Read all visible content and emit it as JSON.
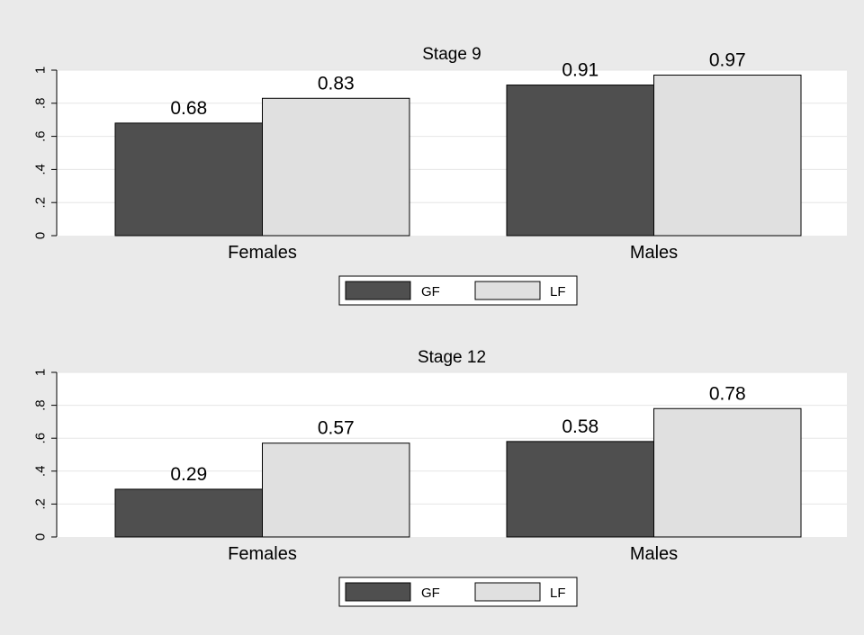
{
  "colors": {
    "outer_bg": "#eaeaea",
    "plot_bg": "#ffffff",
    "grid": "#e6e6e6",
    "gf": "#4f4f4f",
    "lf": "#e0e0e0",
    "bar_stroke": "#000000"
  },
  "chart_data": [
    {
      "type": "bar",
      "title": "Stage 9",
      "categories": [
        "Females",
        "Males"
      ],
      "series": [
        {
          "name": "GF",
          "values": [
            0.68,
            0.91
          ],
          "labels": [
            "0.68",
            "0.91"
          ]
        },
        {
          "name": "LF",
          "values": [
            0.83,
            0.97
          ],
          "labels": [
            "0.83",
            "0.97"
          ]
        }
      ],
      "ylim": [
        0,
        1
      ],
      "yticks": [
        0,
        0.2,
        0.4,
        0.6,
        0.8,
        1
      ],
      "ytick_labels": [
        "0",
        ".2",
        ".4",
        ".6",
        ".8",
        "1"
      ],
      "xlabel": "",
      "ylabel": "",
      "grid": true,
      "legend": [
        "GF",
        "LF"
      ],
      "legend_position": "bottom"
    },
    {
      "type": "bar",
      "title": "Stage 12",
      "categories": [
        "Females",
        "Males"
      ],
      "series": [
        {
          "name": "GF",
          "values": [
            0.29,
            0.58
          ],
          "labels": [
            "0.29",
            "0.58"
          ]
        },
        {
          "name": "LF",
          "values": [
            0.57,
            0.78
          ],
          "labels": [
            "0.57",
            "0.78"
          ]
        }
      ],
      "ylim": [
        0,
        1
      ],
      "yticks": [
        0,
        0.2,
        0.4,
        0.6,
        0.8,
        1
      ],
      "ytick_labels": [
        "0",
        ".2",
        ".4",
        ".6",
        ".8",
        "1"
      ],
      "xlabel": "",
      "ylabel": "",
      "grid": true,
      "legend": [
        "GF",
        "LF"
      ],
      "legend_position": "bottom"
    }
  ]
}
